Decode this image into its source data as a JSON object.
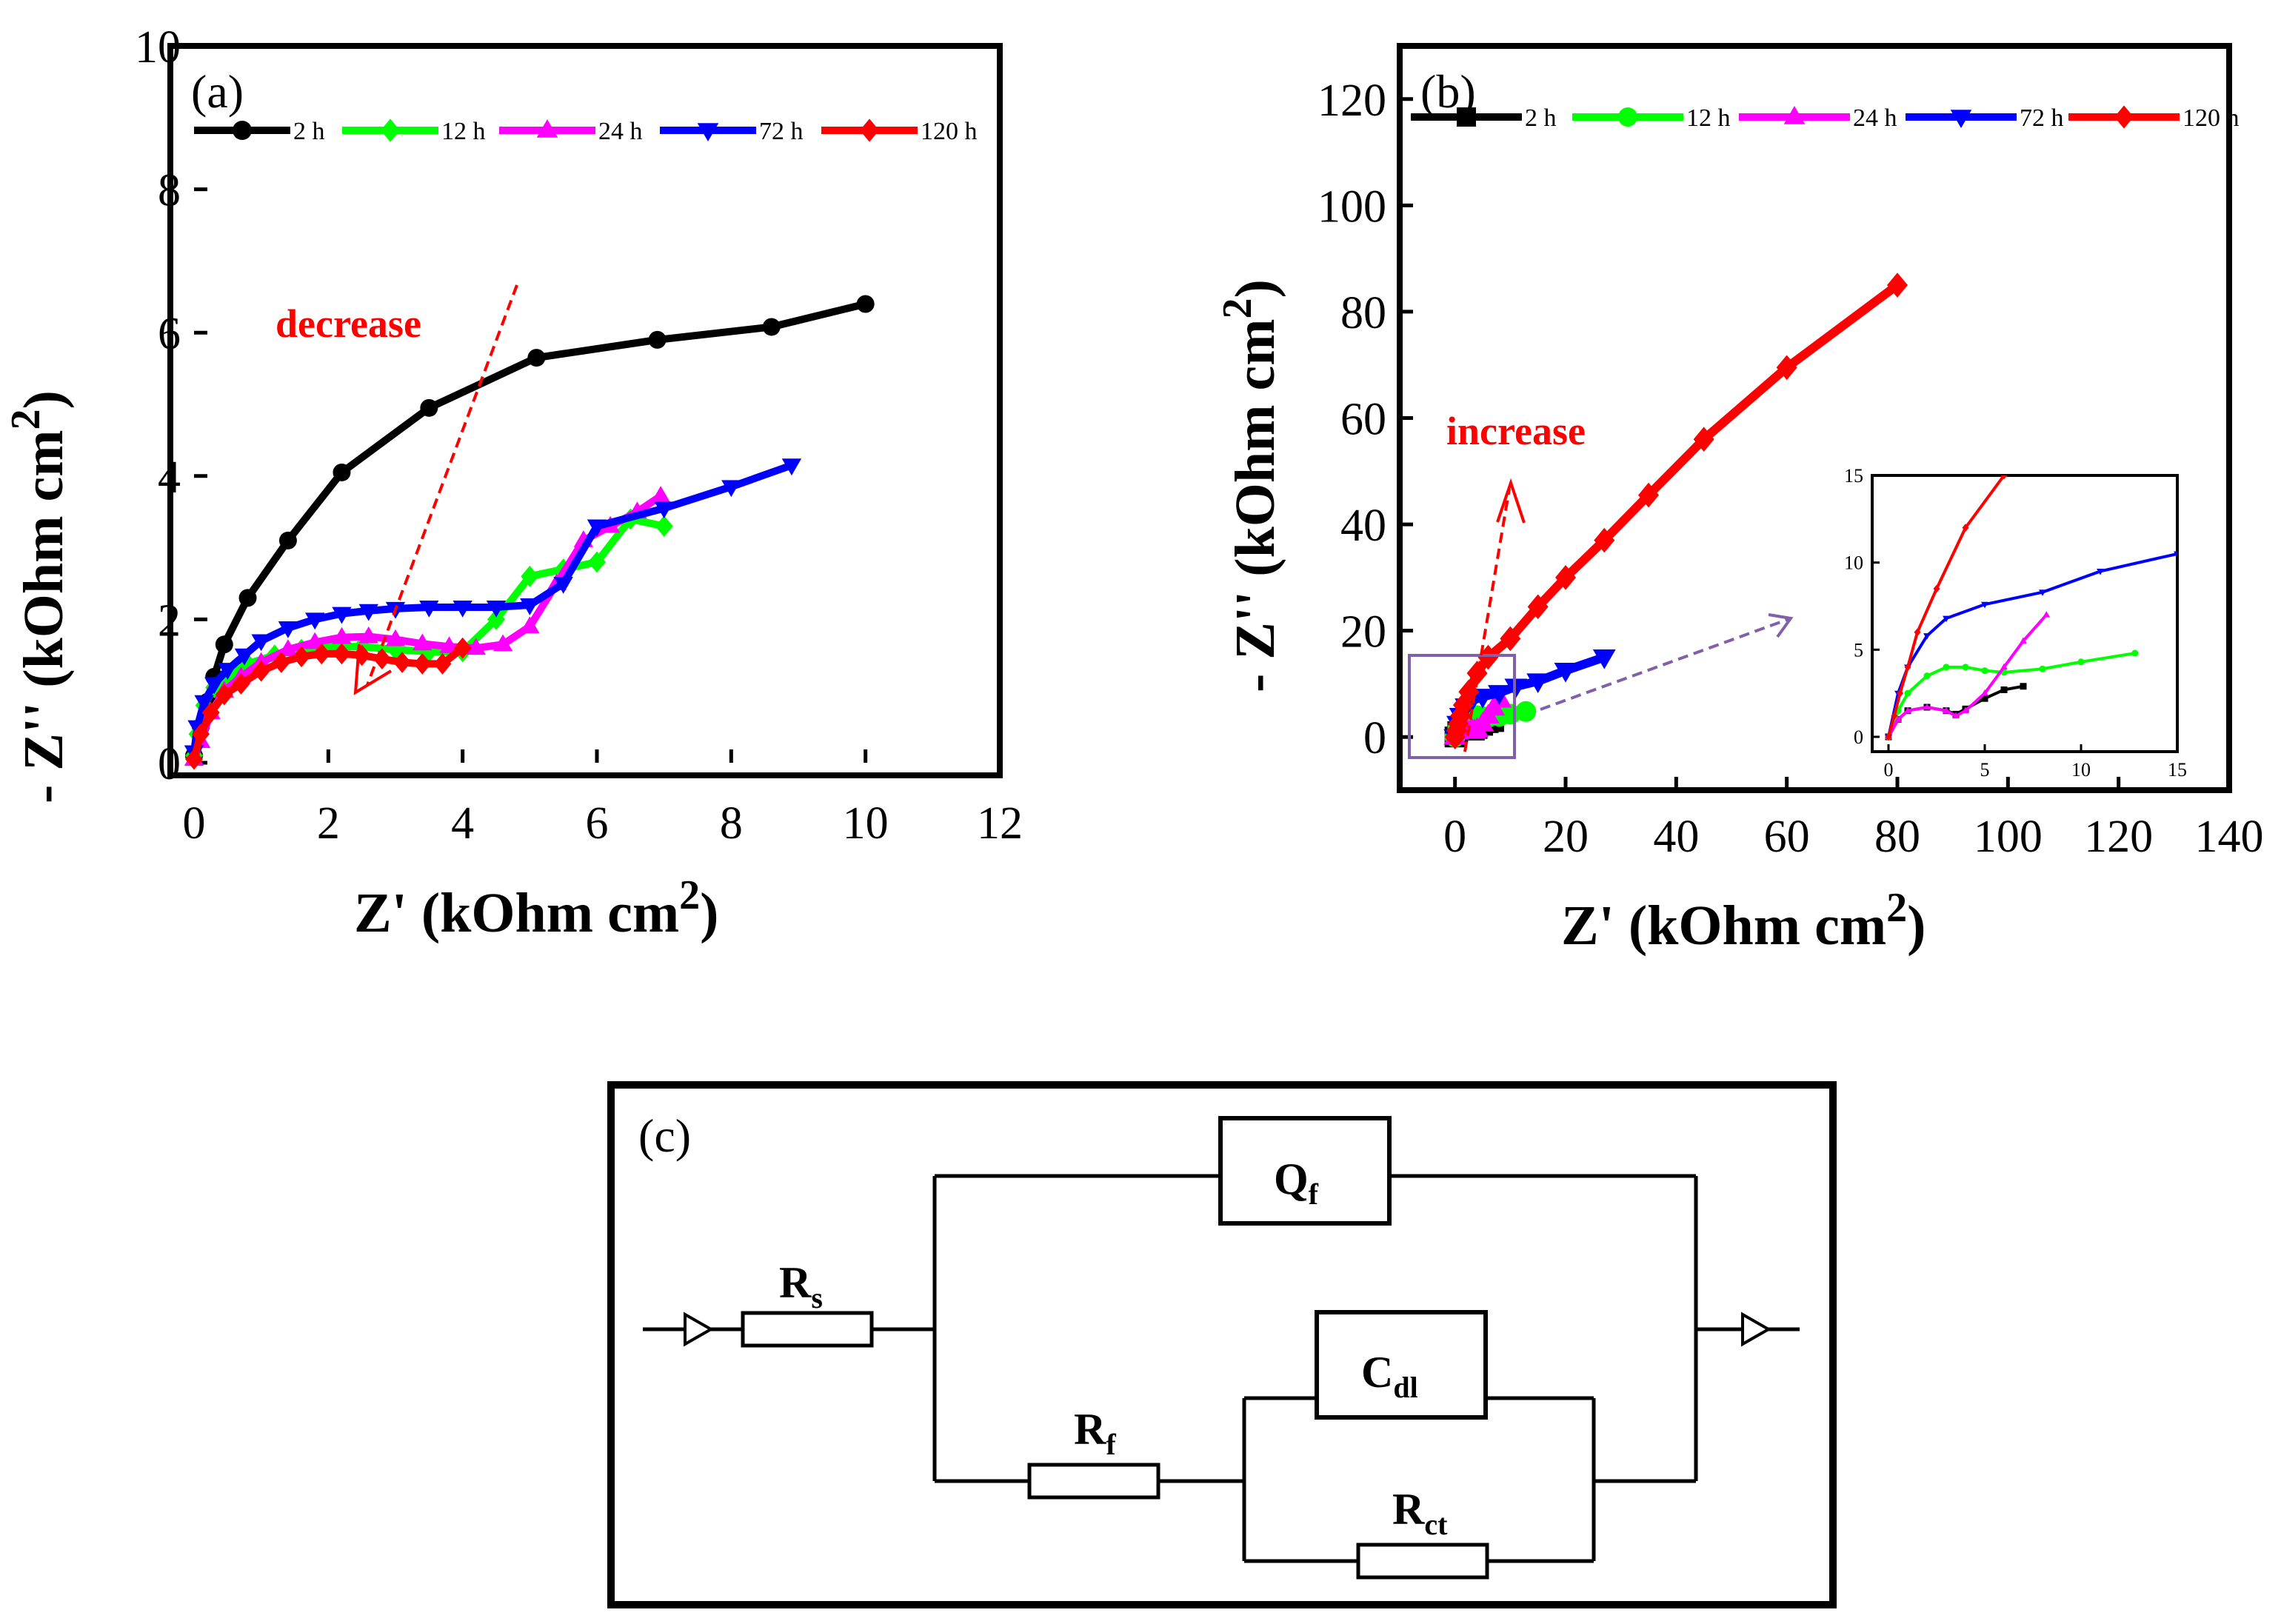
{
  "chart_data": [
    {
      "panel": "(a)",
      "type": "line",
      "xlabel": "Z' (kOhm cm2)",
      "ylabel": "- Z'' (kOhm cm2)",
      "xlim": [
        0,
        12
      ],
      "ylim": [
        0,
        10
      ],
      "xticks": [
        "0",
        "2",
        "4",
        "6",
        "8",
        "10",
        "12"
      ],
      "yticks": [
        "0",
        "2",
        "4",
        "6",
        "8",
        "10"
      ],
      "legend_position": "top",
      "annotation": {
        "text": "decrease",
        "color": "#ff0000"
      },
      "series": [
        {
          "name": "2 h",
          "color": "#000000",
          "marker": "circle",
          "x": [
            0,
            0.1,
            0.2,
            0.3,
            0.45,
            0.8,
            1.4,
            2.2,
            3.5,
            5.1,
            6.9,
            8.6,
            10.0
          ],
          "y": [
            0.1,
            0.5,
            0.85,
            1.2,
            1.65,
            2.3,
            3.1,
            4.05,
            4.95,
            5.65,
            5.9,
            6.08,
            6.4
          ]
        },
        {
          "name": "12 h",
          "color": "#00ff00",
          "marker": "diamond",
          "x": [
            0,
            0.05,
            0.15,
            0.3,
            0.5,
            0.8,
            1.2,
            1.6,
            2.0,
            2.5,
            3.0,
            3.5,
            4.0,
            4.5,
            5.0,
            5.5,
            6.0,
            6.5,
            7.0
          ],
          "y": [
            0.1,
            0.4,
            0.8,
            1.05,
            1.2,
            1.38,
            1.5,
            1.58,
            1.62,
            1.62,
            1.58,
            1.55,
            1.55,
            2.0,
            2.6,
            2.7,
            2.8,
            3.4,
            3.3
          ]
        },
        {
          "name": "24 h",
          "color": "#ff00ff",
          "marker": "triangle-up",
          "x": [
            0,
            0.1,
            0.25,
            0.45,
            0.7,
            1.0,
            1.4,
            1.8,
            2.2,
            2.6,
            3.0,
            3.4,
            3.8,
            4.2,
            4.6,
            5.0,
            5.4,
            5.8,
            6.2,
            6.6,
            6.95
          ],
          "y": [
            0.05,
            0.3,
            0.7,
            1.0,
            1.2,
            1.4,
            1.58,
            1.68,
            1.75,
            1.76,
            1.72,
            1.66,
            1.62,
            1.6,
            1.65,
            1.9,
            2.5,
            3.1,
            3.3,
            3.5,
            3.72
          ]
        },
        {
          "name": "72 h",
          "color": "#0000ff",
          "marker": "triangle-down",
          "x": [
            0,
            0.05,
            0.15,
            0.3,
            0.5,
            0.75,
            1.0,
            1.4,
            1.8,
            2.2,
            2.6,
            3.0,
            3.5,
            4.0,
            4.5,
            5.0,
            5.5,
            6.0,
            7.0,
            8.0,
            8.9
          ],
          "y": [
            0.15,
            0.5,
            0.85,
            1.1,
            1.3,
            1.5,
            1.7,
            1.88,
            2.0,
            2.08,
            2.12,
            2.15,
            2.17,
            2.17,
            2.17,
            2.2,
            2.5,
            3.3,
            3.55,
            3.85,
            4.15
          ]
        },
        {
          "name": "120 h",
          "color": "#ff0000",
          "marker": "diamond",
          "x": [
            0,
            0.1,
            0.25,
            0.45,
            0.7,
            1.0,
            1.3,
            1.6,
            1.9,
            2.2,
            2.5,
            2.8,
            3.1,
            3.4,
            3.7,
            4.0
          ],
          "y": [
            0.05,
            0.4,
            0.7,
            0.95,
            1.1,
            1.28,
            1.4,
            1.48,
            1.52,
            1.52,
            1.5,
            1.45,
            1.4,
            1.38,
            1.38,
            1.6
          ]
        }
      ]
    },
    {
      "panel": "(b)",
      "type": "line",
      "xlabel": "Z' (kOhm cm2)",
      "ylabel": "- Z'' (kOhm cm2)",
      "xlim": [
        -10,
        140
      ],
      "ylim": [
        -10,
        130
      ],
      "xticks": [
        "0",
        "20",
        "40",
        "60",
        "80",
        "100",
        "120",
        "140"
      ],
      "yticks": [
        "0",
        "20",
        "40",
        "60",
        "80",
        "100",
        "120"
      ],
      "legend_position": "top",
      "annotation": {
        "text": "increase",
        "color": "#ff0000"
      },
      "series": [
        {
          "name": "2 h",
          "color": "#000000",
          "marker": "square",
          "x": [
            0,
            0.5,
            1,
            2,
            3,
            3.5,
            4,
            5,
            6,
            7
          ],
          "y": [
            0,
            1,
            1.5,
            1.7,
            1.5,
            1.3,
            1.6,
            2.2,
            2.7,
            2.9
          ]
        },
        {
          "name": "12 h",
          "color": "#00ff00",
          "marker": "circle",
          "x": [
            0,
            0.5,
            1,
            2,
            3,
            4,
            5,
            6,
            8,
            10,
            12.8
          ],
          "y": [
            0,
            1.5,
            2.5,
            3.5,
            4,
            4,
            3.8,
            3.7,
            3.9,
            4.3,
            4.8
          ]
        },
        {
          "name": "24 h",
          "color": "#ff00ff",
          "marker": "triangle-up",
          "x": [
            0,
            0.5,
            1,
            2,
            3,
            3.5,
            4,
            5,
            6,
            7,
            8.2
          ],
          "y": [
            0,
            1,
            1.5,
            1.7,
            1.5,
            1.2,
            1.5,
            2.5,
            4,
            5.5,
            7
          ]
        },
        {
          "name": "72 h",
          "color": "#0000ff",
          "marker": "triangle-down",
          "x": [
            0,
            0.5,
            1,
            2,
            3,
            5,
            8,
            11,
            15,
            20,
            27
          ],
          "y": [
            0,
            2.5,
            4,
            5.8,
            6.8,
            7.6,
            8.3,
            9.5,
            10.5,
            12.5,
            15
          ]
        },
        {
          "name": "120 h",
          "color": "#ff0000",
          "marker": "diamond",
          "x": [
            0,
            0.3,
            0.6,
            1,
            1.5,
            2.5,
            4,
            6,
            10,
            15,
            20,
            27,
            35,
            45,
            60,
            80
          ],
          "y": [
            0,
            1.2,
            2.5,
            4,
            6,
            8.5,
            12,
            15,
            18.5,
            24.5,
            30,
            37,
            45.5,
            56,
            69.5,
            85
          ]
        }
      ],
      "inset": {
        "xlim": [
          0,
          15
        ],
        "ylim": [
          0,
          15
        ],
        "xticks": [
          "0",
          "5",
          "10",
          "15"
        ],
        "yticks": [
          "0",
          "5",
          "10",
          "15"
        ]
      }
    }
  ],
  "circuit": {
    "label": "(c)",
    "elements": [
      {
        "main": "R",
        "sub": "s"
      },
      {
        "main": "Q",
        "sub": "f"
      },
      {
        "main": "R",
        "sub": "f"
      },
      {
        "main": "C",
        "sub": "dl"
      },
      {
        "main": "R",
        "sub": "ct"
      }
    ]
  }
}
